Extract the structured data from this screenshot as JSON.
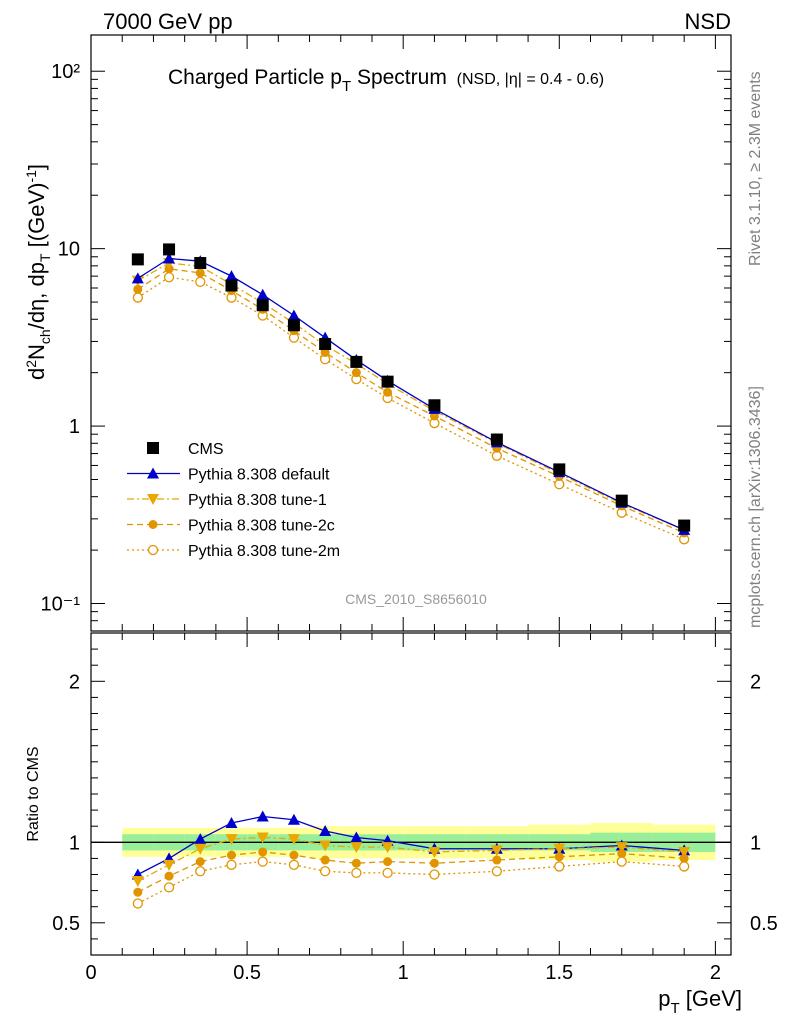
{
  "header": {
    "left": "7000 GeV pp",
    "right": "NSD"
  },
  "side_labels": {
    "rivet": "Rivet 3.1.10, ≥ 2.3M events",
    "mcplots": "mcplots.cern.ch [arXiv:1306.3436]"
  },
  "analysis_id": "CMS_2010_S8656010",
  "chart_data": [
    {
      "type": "scatter",
      "title_main": "Charged Particle p",
      "title_sub": "T",
      "title_rest": " Spectrum",
      "title_note": "(NSD, |η| = 0.4 - 0.6)",
      "ylabel": "d²Nₕₕ/dη, dpₜ [(GeV)⁻¹]",
      "ylabel_parts": {
        "a": "d",
        "b": "2",
        "c": "N",
        "d": "ch",
        "e": "/dη, dp",
        "f": "T",
        "g": " [(GeV)",
        "h": "-1",
        "i": "]"
      },
      "yscale": "log",
      "ylim": [
        0.07,
        160
      ],
      "xlim": [
        0,
        2.05
      ],
      "ytick_labels": [
        "10⁻¹",
        "1",
        "10",
        "10²"
      ],
      "legend_position": "bottom-left",
      "x": [
        0.15,
        0.25,
        0.35,
        0.45,
        0.55,
        0.65,
        0.75,
        0.85,
        0.95,
        1.1,
        1.3,
        1.5,
        1.7,
        1.9
      ],
      "series": [
        {
          "name": "CMS",
          "color": "#000000",
          "marker": "square",
          "line": "none",
          "values": [
            8.7,
            9.9,
            8.3,
            6.2,
            4.8,
            3.7,
            2.9,
            2.3,
            1.78,
            1.31,
            0.84,
            0.57,
            0.38,
            0.275
          ]
        },
        {
          "name": "Pythia 8.308 default",
          "color": "#0000cc",
          "marker": "triangle-up",
          "line": "solid",
          "values": [
            6.8,
            8.8,
            8.5,
            7.0,
            5.5,
            4.2,
            3.15,
            2.36,
            1.8,
            1.25,
            0.81,
            0.55,
            0.37,
            0.26
          ]
        },
        {
          "name": "Pythia 8.308 tune-1",
          "color": "#e8a800",
          "marker": "triangle-down",
          "line": "dashdot",
          "values": [
            6.6,
            8.3,
            7.95,
            6.3,
            4.95,
            3.8,
            2.85,
            2.25,
            1.73,
            1.22,
            0.8,
            0.54,
            0.365,
            0.26
          ]
        },
        {
          "name": "Pythia 8.308 tune-2c",
          "color": "#e09400",
          "marker": "circle",
          "line": "dashed",
          "values": [
            5.9,
            7.7,
            7.3,
            5.8,
            4.55,
            3.45,
            2.6,
            2.0,
            1.55,
            1.14,
            0.75,
            0.52,
            0.355,
            0.25
          ]
        },
        {
          "name": "Pythia 8.308 tune-2m",
          "color": "#e09400",
          "marker": "circle-open",
          "line": "dotted",
          "values": [
            5.3,
            6.9,
            6.5,
            5.3,
            4.2,
            3.15,
            2.38,
            1.84,
            1.44,
            1.04,
            0.68,
            0.47,
            0.325,
            0.23
          ]
        }
      ]
    },
    {
      "type": "scatter",
      "xlabel_main": "p",
      "xlabel_sub": "T",
      "xlabel_rest": " [GeV]",
      "ylabel": "Ratio to CMS",
      "ylim": [
        0.3,
        2.3
      ],
      "xlim": [
        0,
        2.05
      ],
      "xtick_labels": [
        "0",
        "0.5",
        "1",
        "1.5",
        "2"
      ],
      "ytick_labels": [
        "0.5",
        "1",
        "2"
      ],
      "bands": {
        "bin_edges": [
          0.1,
          0.2,
          0.3,
          0.4,
          0.5,
          0.6,
          0.7,
          0.8,
          0.9,
          1.0,
          1.2,
          1.4,
          1.6,
          1.8,
          2.0
        ],
        "stat_half_width": [
          0.05,
          0.05,
          0.05,
          0.05,
          0.05,
          0.05,
          0.05,
          0.05,
          0.05,
          0.05,
          0.05,
          0.05,
          0.06,
          0.06
        ],
        "total_half_width": [
          0.09,
          0.09,
          0.09,
          0.09,
          0.09,
          0.09,
          0.1,
          0.1,
          0.1,
          0.1,
          0.1,
          0.11,
          0.12,
          0.11
        ],
        "stat_color": "#99ee99",
        "total_color": "#ffff99"
      },
      "x": [
        0.15,
        0.25,
        0.35,
        0.45,
        0.55,
        0.65,
        0.75,
        0.85,
        0.95,
        1.1,
        1.3,
        1.5,
        1.7,
        1.9
      ],
      "series": [
        {
          "name": "Pythia 8.308 default",
          "values": [
            0.8,
            0.9,
            1.02,
            1.12,
            1.16,
            1.14,
            1.07,
            1.03,
            1.01,
            0.96,
            0.96,
            0.96,
            0.98,
            0.95
          ]
        },
        {
          "name": "Pythia 8.308 tune-1",
          "values": [
            0.76,
            0.86,
            0.96,
            1.02,
            1.03,
            1.02,
            0.98,
            0.97,
            0.97,
            0.94,
            0.95,
            0.96,
            0.97,
            0.94
          ]
        },
        {
          "name": "Pythia 8.308 tune-2c",
          "values": [
            0.69,
            0.79,
            0.88,
            0.92,
            0.94,
            0.92,
            0.89,
            0.87,
            0.88,
            0.87,
            0.89,
            0.91,
            0.93,
            0.9
          ]
        },
        {
          "name": "Pythia 8.308 tune-2m",
          "values": [
            0.62,
            0.72,
            0.82,
            0.86,
            0.88,
            0.86,
            0.82,
            0.81,
            0.81,
            0.8,
            0.82,
            0.85,
            0.88,
            0.85
          ]
        }
      ]
    }
  ]
}
